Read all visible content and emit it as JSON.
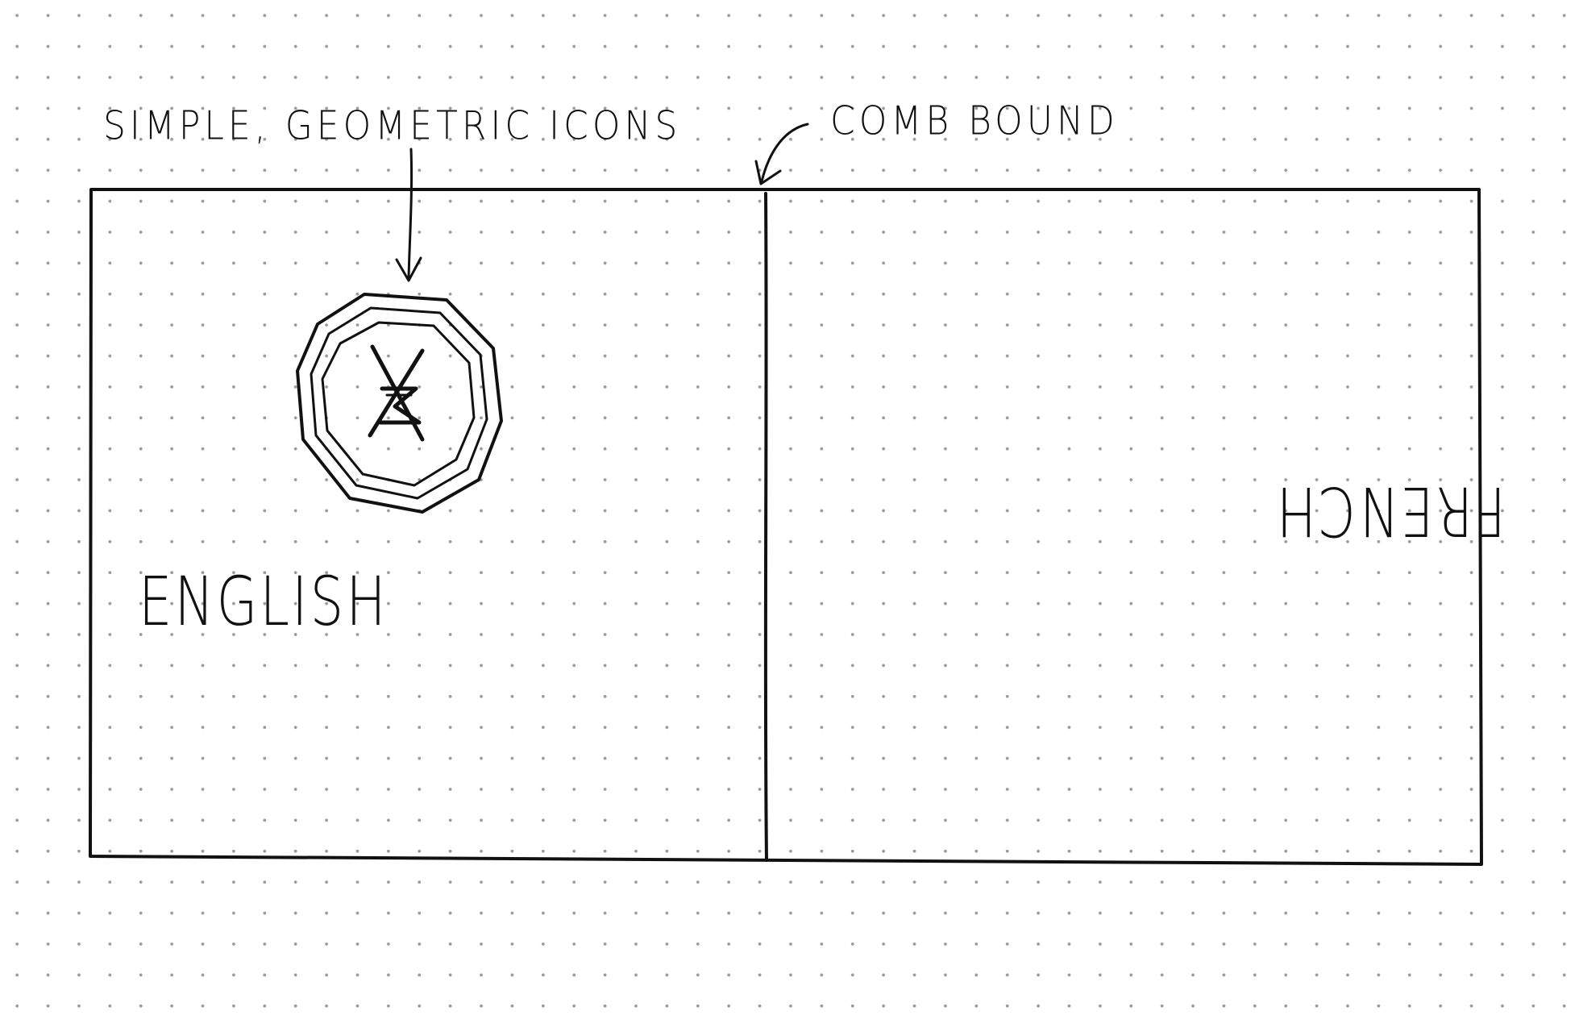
{
  "annotations": {
    "icons_note": "SIMPLE, GEOMETRIC ICONS",
    "binding_note": "COMB BOUND"
  },
  "left_panel": {
    "language": "ENGLISH",
    "icon": "octagon-emblem-icon"
  },
  "right_panel": {
    "language": "FRENCH",
    "icon": "octagon-emblem-icon"
  },
  "colors": {
    "ink": "#111111",
    "paper": "#ffffff",
    "dots": "#9a9a9a"
  }
}
